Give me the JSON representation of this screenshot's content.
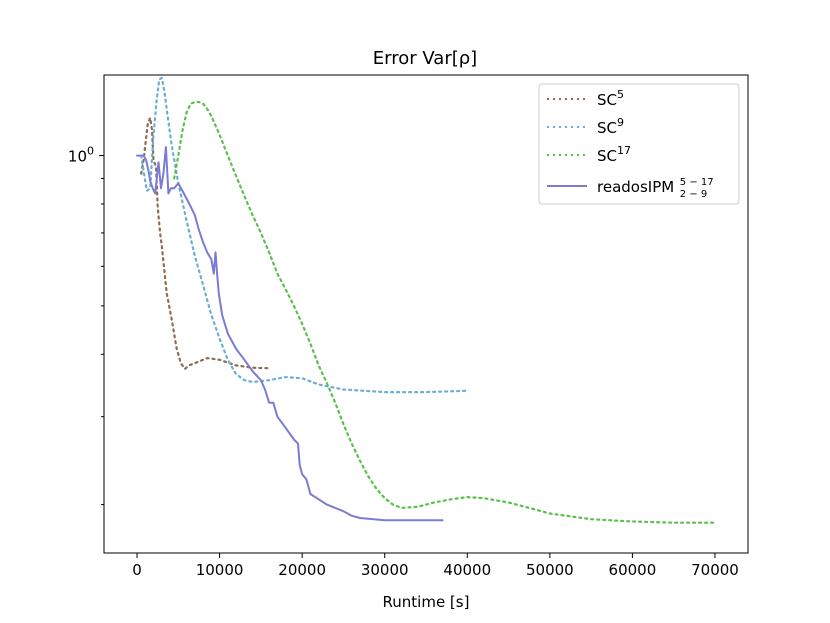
{
  "chart_data": {
    "type": "line",
    "title": "Error Var[ρ]",
    "xlabel": "Runtime [s]",
    "ylabel": "",
    "xlim": [
      -4000,
      74000
    ],
    "ylim": [
      0.16,
      1.45
    ],
    "yscale": "log",
    "x_ticks": [
      0,
      10000,
      20000,
      30000,
      40000,
      50000,
      60000,
      70000
    ],
    "x_tick_labels": [
      "0",
      "10000",
      "20000",
      "30000",
      "40000",
      "50000",
      "60000",
      "70000"
    ],
    "y_tick_label": {
      "base": "10",
      "exponent": "0",
      "value": 1.0
    },
    "y_minor_ticks": [
      0.2,
      0.3,
      0.4,
      0.5,
      0.6,
      0.7,
      0.8,
      0.9
    ],
    "grid": false,
    "legend_position": "top-right",
    "series": [
      {
        "name": "SC",
        "sup": "5",
        "sub": "",
        "color": "#8c6d4f",
        "style": "dotted",
        "x": [
          500,
          800,
          1000,
          1300,
          1600,
          1800,
          2000,
          2300,
          2500,
          2800,
          3000,
          3300,
          3600,
          4200,
          4800,
          5300,
          5800,
          6300,
          7000,
          8500,
          10000,
          12000,
          14000,
          16200
        ],
        "y": [
          0.92,
          0.98,
          1.05,
          1.16,
          1.19,
          1.13,
          0.98,
          0.95,
          0.79,
          0.7,
          0.66,
          0.59,
          0.53,
          0.47,
          0.41,
          0.384,
          0.374,
          0.38,
          0.384,
          0.393,
          0.39,
          0.38,
          0.376,
          0.375
        ]
      },
      {
        "name": "SC",
        "sup": "9",
        "sub": "",
        "color": "#6aaed6",
        "style": "dotted",
        "x": [
          500,
          800,
          1200,
          1600,
          2000,
          2400,
          2700,
          3000,
          3300,
          3700,
          4200,
          5000,
          6000,
          7000,
          8000,
          9000,
          10000,
          11000,
          12000,
          13000,
          14000,
          16000,
          18000,
          20000,
          22000,
          25000,
          30000,
          35000,
          40000
        ],
        "y": [
          1.0,
          0.93,
          0.85,
          0.86,
          1.1,
          1.3,
          1.42,
          1.43,
          1.35,
          1.2,
          1.05,
          0.88,
          0.74,
          0.63,
          0.55,
          0.48,
          0.43,
          0.39,
          0.365,
          0.355,
          0.352,
          0.355,
          0.36,
          0.358,
          0.348,
          0.34,
          0.336,
          0.336,
          0.338
        ]
      },
      {
        "name": "SC",
        "sup": "17",
        "sub": "",
        "color": "#59c04a",
        "style": "dotted",
        "x": [
          4500,
          5000,
          5500,
          6000,
          6500,
          7000,
          7500,
          8000,
          8500,
          9000,
          10000,
          11000,
          12000,
          13000,
          14000,
          15000,
          16000,
          17000,
          18000,
          19000,
          20000,
          21000,
          22000,
          23000,
          24000,
          25000,
          26000,
          27000,
          28000,
          29000,
          30000,
          31000,
          32000,
          34000,
          36000,
          38000,
          40000,
          42000,
          45000,
          48000,
          50000,
          55000,
          60000,
          65000,
          70000
        ],
        "y": [
          0.9,
          1.0,
          1.12,
          1.22,
          1.27,
          1.28,
          1.28,
          1.27,
          1.24,
          1.2,
          1.1,
          1.0,
          0.91,
          0.83,
          0.76,
          0.7,
          0.64,
          0.58,
          0.54,
          0.5,
          0.46,
          0.42,
          0.38,
          0.35,
          0.32,
          0.29,
          0.265,
          0.245,
          0.228,
          0.215,
          0.206,
          0.2,
          0.197,
          0.198,
          0.202,
          0.205,
          0.207,
          0.206,
          0.202,
          0.196,
          0.192,
          0.187,
          0.185,
          0.184,
          0.184
        ]
      },
      {
        "name": "readosIPM",
        "sup": "5 − 17",
        "sub": "2 − 9",
        "color": "#7b7bd6",
        "style": "solid",
        "x": [
          0,
          800,
          1100,
          1400,
          1600,
          1900,
          2200,
          2600,
          2900,
          3200,
          3500,
          3800,
          4100,
          4500,
          5000,
          5500,
          6000,
          6500,
          7000,
          7500,
          8000,
          8500,
          9000,
          9300,
          9500,
          9700,
          9900,
          10300,
          11000,
          12000,
          13000,
          14000,
          15000,
          15500,
          16000,
          16500,
          17000,
          18000,
          19000,
          19500,
          19700,
          20000,
          20500,
          21000,
          22000,
          23000,
          24000,
          25000,
          26000,
          27000,
          30000,
          33000,
          37000
        ],
        "y": [
          1.0,
          1.0,
          0.98,
          0.93,
          0.89,
          0.86,
          0.84,
          0.97,
          0.86,
          0.92,
          1.04,
          0.84,
          0.86,
          0.86,
          0.88,
          0.85,
          0.82,
          0.79,
          0.76,
          0.71,
          0.67,
          0.64,
          0.62,
          0.58,
          0.64,
          0.58,
          0.53,
          0.48,
          0.44,
          0.41,
          0.39,
          0.37,
          0.355,
          0.34,
          0.32,
          0.32,
          0.3,
          0.285,
          0.27,
          0.265,
          0.24,
          0.23,
          0.225,
          0.21,
          0.205,
          0.2,
          0.197,
          0.194,
          0.19,
          0.188,
          0.186,
          0.186,
          0.186
        ]
      }
    ]
  }
}
